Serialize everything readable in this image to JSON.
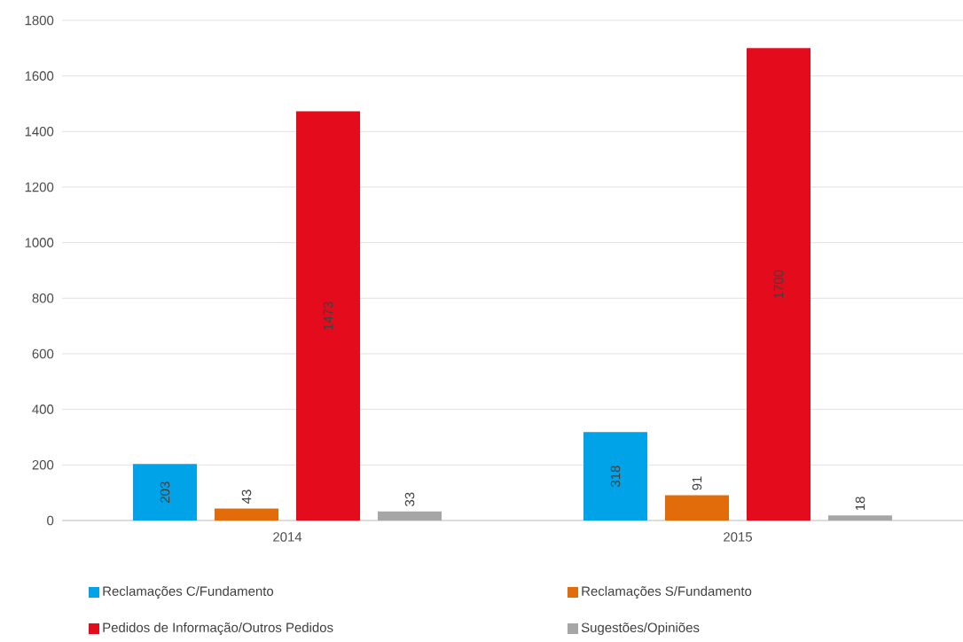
{
  "chart_data": {
    "type": "bar",
    "categories": [
      "2014",
      "2015"
    ],
    "series": [
      {
        "name": "Reclamações C/Fundamento",
        "color": "#00a2e8",
        "values": [
          203,
          318
        ]
      },
      {
        "name": "Reclamações S/Fundamento",
        "color": "#e36c0a",
        "values": [
          43,
          91
        ]
      },
      {
        "name": "Pedidos de Informação/Outros Pedidos",
        "color": "#e30b1c",
        "values": [
          1473,
          1700
        ]
      },
      {
        "name": "Sugestões/Opiniões",
        "color": "#a6a6a6",
        "values": [
          33,
          18
        ]
      }
    ],
    "ylim": [
      0,
      1800
    ],
    "yticks": [
      0,
      200,
      400,
      600,
      800,
      1000,
      1200,
      1400,
      1600,
      1800
    ],
    "grid": "y",
    "legend": "bottom",
    "data_labels": true
  }
}
